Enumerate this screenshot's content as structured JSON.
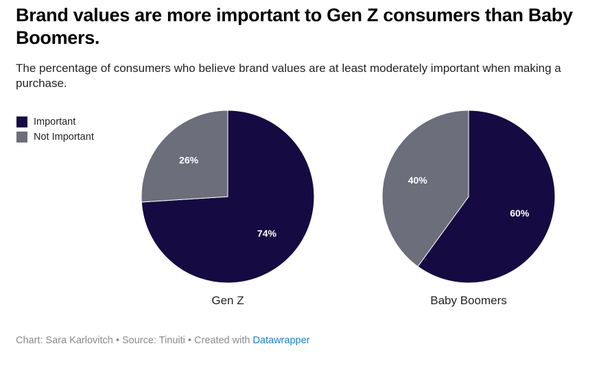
{
  "header": {
    "title": "Brand values are more important to Gen Z consumers than Baby Boomers.",
    "subtitle": "The percentage of consumers who believe brand values are at least moderately important when making a purchase."
  },
  "legend": [
    {
      "label": "Important",
      "color": "#160a42"
    },
    {
      "label": "Not Important",
      "color": "#6c6e7c"
    }
  ],
  "footer": {
    "chart_credit": "Chart: Sara Karlovitch",
    "separator": " • ",
    "source": "Source: Tinuiti",
    "created_with": "Created with ",
    "tool_link": "Datawrapper",
    "link_color": "#1d81c8"
  },
  "chart_data": {
    "type": "pie",
    "title": "Brand values are more important to Gen Z consumers than Baby Boomers.",
    "subtitle": "The percentage of consumers who believe brand values are at least moderately important when making a purchase.",
    "legend_position": "top-left",
    "categories": [
      "Important",
      "Not Important"
    ],
    "colors": [
      "#160a42",
      "#6c6e7c"
    ],
    "pies": [
      {
        "name": "Gen Z",
        "values": [
          74,
          26
        ],
        "labels": [
          "74%",
          "26%"
        ]
      },
      {
        "name": "Baby Boomers",
        "values": [
          60,
          40
        ],
        "labels": [
          "60%",
          "40%"
        ]
      }
    ]
  }
}
